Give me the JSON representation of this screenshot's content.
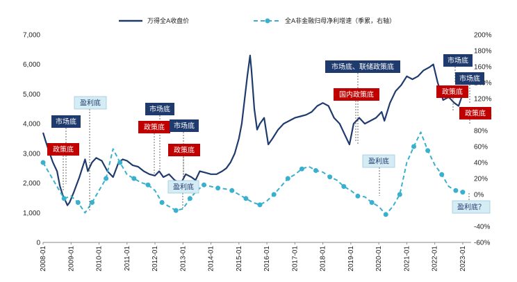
{
  "chart_data": {
    "type": "line",
    "title": "",
    "xlabel": "",
    "ylabel_left": "",
    "ylabel_right": "",
    "ylim_left": [
      0,
      7000
    ],
    "ylim_right": [
      -60,
      200
    ],
    "x_range": [
      2008.0,
      2023.3
    ],
    "x_ticks": [
      "2008-01",
      "2009-01",
      "2010-01",
      "2011-01",
      "2012-01",
      "2013-01",
      "2014-01",
      "2015-01",
      "2016-01",
      "2017-01",
      "2018-01",
      "2019-01",
      "2020-01",
      "2021-01",
      "2022-01",
      "2023-01"
    ],
    "y_ticks_left": [
      "0",
      "1,000",
      "2,000",
      "3,000",
      "4,000",
      "5,000",
      "6,000",
      "7,000"
    ],
    "y_ticks_right": [
      "-60%",
      "-40%",
      "-20%",
      "0%",
      "20%",
      "40%",
      "60%",
      "80%",
      "100%",
      "120%",
      "140%",
      "160%",
      "180%",
      "200%"
    ],
    "legend_position": "top",
    "grid": false,
    "series": [
      {
        "name": "万得全A收盘价",
        "axis": "left",
        "style": "solid",
        "color": "#1f3b6e",
        "x": [
          2008.0,
          2008.08,
          2008.2,
          2008.35,
          2008.5,
          2008.6,
          2008.7,
          2008.8,
          2008.87,
          2008.95,
          2009.1,
          2009.3,
          2009.5,
          2009.6,
          2009.75,
          2009.9,
          2010.1,
          2010.3,
          2010.5,
          2010.7,
          2010.85,
          2011.0,
          2011.2,
          2011.4,
          2011.6,
          2011.8,
          2012.0,
          2012.15,
          2012.3,
          2012.5,
          2012.7,
          2012.93,
          2013.1,
          2013.3,
          2013.45,
          2013.6,
          2013.8,
          2014.0,
          2014.2,
          2014.4,
          2014.55,
          2014.7,
          2014.85,
          2015.0,
          2015.1,
          2015.2,
          2015.3,
          2015.4,
          2015.45,
          2015.55,
          2015.65,
          2015.75,
          2015.9,
          2016.0,
          2016.05,
          2016.2,
          2016.4,
          2016.6,
          2016.8,
          2017.0,
          2017.2,
          2017.4,
          2017.6,
          2017.8,
          2018.0,
          2018.2,
          2018.4,
          2018.6,
          2018.8,
          2018.95,
          2019.1,
          2019.3,
          2019.5,
          2019.7,
          2019.9,
          2020.1,
          2020.2,
          2020.4,
          2020.6,
          2020.8,
          2021.0,
          2021.2,
          2021.4,
          2021.6,
          2021.8,
          2021.95,
          2022.1,
          2022.3,
          2022.5,
          2022.7,
          2022.85,
          2023.0,
          2023.2
        ],
        "values": [
          3700,
          3450,
          3100,
          2700,
          2400,
          1900,
          1600,
          1400,
          1250,
          1350,
          1700,
          2200,
          2800,
          2400,
          2700,
          2850,
          2750,
          2400,
          2200,
          2700,
          2800,
          2750,
          2600,
          2550,
          2400,
          2300,
          2250,
          2400,
          2200,
          2300,
          2100,
          2000,
          2300,
          2200,
          2100,
          2400,
          2350,
          2300,
          2300,
          2400,
          2500,
          2700,
          3000,
          3500,
          4000,
          4800,
          5600,
          6300,
          5800,
          4500,
          3800,
          4000,
          4200,
          3600,
          3300,
          3500,
          3800,
          4000,
          4100,
          4200,
          4250,
          4300,
          4400,
          4600,
          4700,
          4600,
          4200,
          4000,
          3600,
          3300,
          4000,
          4200,
          4000,
          4100,
          4200,
          4400,
          4100,
          4700,
          5100,
          5300,
          5600,
          5500,
          5600,
          5800,
          5900,
          6000,
          5400,
          4800,
          4900,
          4700,
          4600,
          5000,
          5100
        ]
      },
      {
        "name": "全A非金融归母净利增速（季累，右轴）",
        "axis": "right",
        "style": "dashed",
        "color": "#3ab0cf",
        "marker": "circle",
        "x": [
          2008.0,
          2008.5,
          2008.75,
          2009.0,
          2009.25,
          2009.5,
          2009.75,
          2010.0,
          2010.25,
          2010.5,
          2010.75,
          2011.0,
          2011.25,
          2011.5,
          2011.75,
          2012.0,
          2012.25,
          2012.5,
          2012.75,
          2013.0,
          2013.25,
          2013.5,
          2013.75,
          2014.0,
          2014.25,
          2014.5,
          2014.75,
          2015.0,
          2015.25,
          2015.5,
          2015.75,
          2016.0,
          2016.25,
          2016.5,
          2016.75,
          2017.0,
          2017.25,
          2017.5,
          2017.75,
          2018.0,
          2018.25,
          2018.5,
          2018.75,
          2019.0,
          2019.25,
          2019.5,
          2019.75,
          2020.0,
          2020.25,
          2020.5,
          2020.75,
          2021.0,
          2021.25,
          2021.5,
          2021.75,
          2022.0,
          2022.25,
          2022.5,
          2022.75,
          2023.0
        ],
        "values": [
          40,
          10,
          -5,
          -2,
          -10,
          -23,
          -10,
          5,
          20,
          57,
          40,
          25,
          20,
          15,
          12,
          5,
          -10,
          -15,
          -20,
          -18,
          -5,
          5,
          12,
          10,
          8,
          7,
          5,
          0,
          -5,
          -10,
          -13,
          -8,
          0,
          10,
          20,
          25,
          32,
          35,
          30,
          28,
          22,
          18,
          10,
          5,
          -2,
          -3,
          -10,
          -15,
          -25,
          -15,
          0,
          40,
          60,
          78,
          55,
          37,
          25,
          10,
          5,
          3
        ]
      }
    ],
    "annotations": [
      {
        "text": "市场底",
        "style": "navy"
      },
      {
        "text": "政策底",
        "style": "red"
      },
      {
        "text": "盈利底",
        "style": "light"
      },
      {
        "text": "市场底",
        "style": "navy"
      },
      {
        "text": "政策底",
        "style": "red"
      },
      {
        "text": "市场底",
        "style": "navy"
      },
      {
        "text": "政策底",
        "style": "red"
      },
      {
        "text": "盈利底",
        "style": "light"
      },
      {
        "text": "市场底、联储政策底",
        "style": "navy"
      },
      {
        "text": "国内政策底",
        "style": "red"
      },
      {
        "text": "盈利底",
        "style": "light"
      },
      {
        "text": "市场底",
        "style": "navy"
      },
      {
        "text": "政策底",
        "style": "red"
      },
      {
        "text": "市场底",
        "style": "navy"
      },
      {
        "text": "政策底",
        "style": "red"
      },
      {
        "text": "盈利底？",
        "style": "light"
      }
    ]
  },
  "colors": {
    "navy": "#1f3b6e",
    "red": "#c00000",
    "light_fill": "#d6ecf5",
    "light_text": "#1f3b6e",
    "series2": "#3ab0cf"
  }
}
